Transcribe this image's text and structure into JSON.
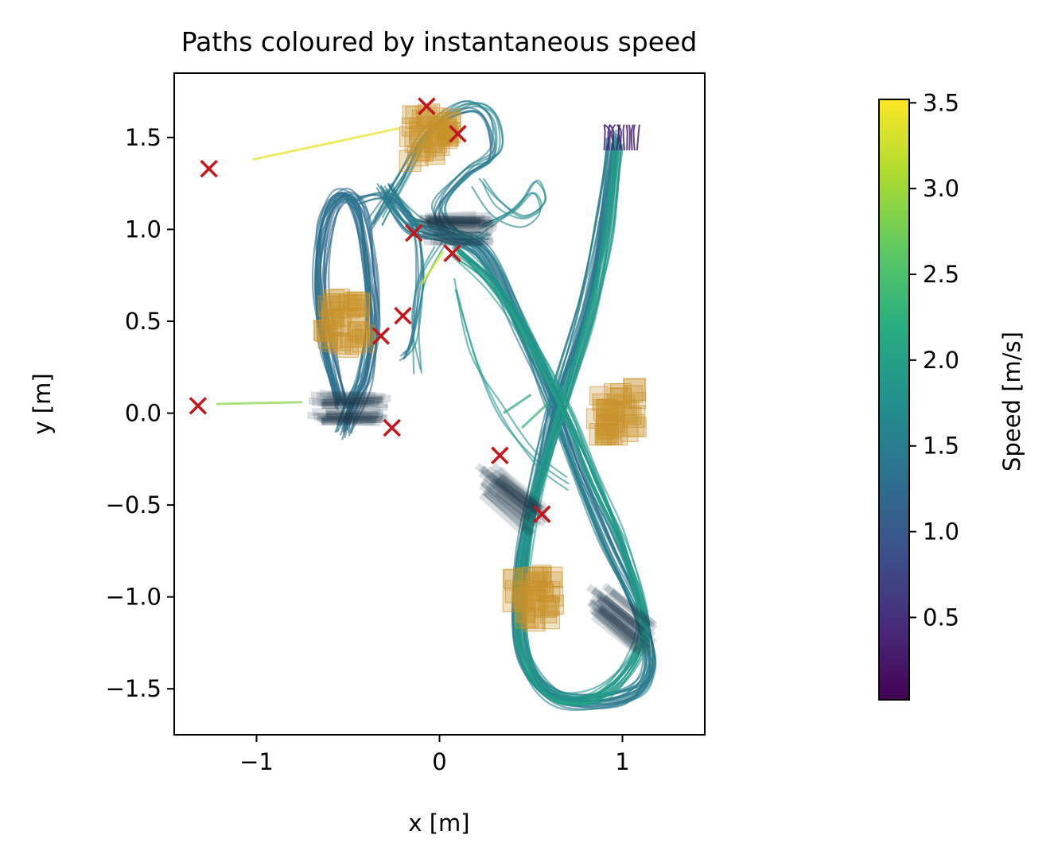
{
  "chart_data": {
    "type": "line",
    "title": "Paths coloured by instantaneous speed",
    "xlabel": "x [m]",
    "ylabel": "y [m]",
    "xlim": [
      -1.45,
      1.45
    ],
    "ylim": [
      -1.75,
      1.85
    ],
    "xticks": [
      -1,
      0,
      1
    ],
    "xtick_labels": [
      "−1",
      "0",
      "1"
    ],
    "yticks": [
      -1.5,
      -1.0,
      -0.5,
      0.0,
      0.5,
      1.0,
      1.5
    ],
    "ytick_labels": [
      "−1.5",
      "−1.0",
      "−0.5",
      "0.0",
      "0.5",
      "1.0",
      "1.5"
    ],
    "grid": false,
    "colorbar": {
      "label": "Speed [m/s]",
      "colormap": "viridis",
      "range": [
        0.02,
        3.52
      ],
      "ticks": [
        0.5,
        1.0,
        1.5,
        2.0,
        2.5,
        3.0,
        3.5
      ],
      "tick_labels": [
        "0.5",
        "1.0",
        "1.5",
        "2.0",
        "2.5",
        "3.0",
        "3.5"
      ]
    },
    "colors": {
      "gate_box": "#c8922b",
      "gate_line": "#1f3a4a",
      "cross_marker": "#c4161c"
    },
    "path_bundles": [
      {
        "count": 22,
        "speed": 1.3,
        "points": [
          [
            -0.53,
            0.05
          ],
          [
            -0.61,
            0.35
          ],
          [
            -0.65,
            0.7
          ],
          [
            -0.62,
            1.03
          ],
          [
            -0.53,
            1.18
          ],
          [
            -0.43,
            1.1
          ],
          [
            -0.38,
            0.8
          ],
          [
            -0.36,
            0.5
          ],
          [
            -0.4,
            0.2
          ],
          [
            -0.47,
            0.05
          ],
          [
            -0.52,
            -0.1
          ]
        ]
      },
      {
        "count": 22,
        "speed": 1.45,
        "points": [
          [
            -0.3,
            1.22
          ],
          [
            -0.15,
            1.02
          ],
          [
            0.05,
            0.96
          ],
          [
            0.25,
            0.85
          ],
          [
            0.45,
            0.45
          ],
          [
            0.6,
            0.1
          ],
          [
            0.75,
            -0.3
          ],
          [
            0.92,
            -0.7
          ],
          [
            1.1,
            -1.1
          ],
          [
            1.15,
            -1.4
          ],
          [
            1.0,
            -1.55
          ],
          [
            0.65,
            -1.55
          ],
          [
            0.45,
            -1.3
          ],
          [
            0.45,
            -0.8
          ],
          [
            0.55,
            -0.3
          ],
          [
            0.65,
            0.1
          ],
          [
            0.8,
            0.6
          ],
          [
            0.9,
            1.1
          ],
          [
            0.95,
            1.5
          ]
        ]
      },
      {
        "count": 18,
        "speed": 1.9,
        "points": [
          [
            0.1,
            0.88
          ],
          [
            0.3,
            0.7
          ],
          [
            0.5,
            0.4
          ],
          [
            0.7,
            0.0
          ],
          [
            0.85,
            -0.35
          ],
          [
            1.02,
            -0.75
          ],
          [
            1.12,
            -1.2
          ],
          [
            0.9,
            -1.52
          ],
          [
            0.6,
            -1.52
          ],
          [
            0.45,
            -1.2
          ],
          [
            0.5,
            -0.6
          ],
          [
            0.65,
            -0.05
          ],
          [
            0.82,
            0.5
          ],
          [
            0.93,
            1.0
          ],
          [
            0.98,
            1.48
          ]
        ]
      },
      {
        "count": 10,
        "speed": 1.5,
        "points": [
          [
            -0.35,
            1.02
          ],
          [
            -0.2,
            1.28
          ],
          [
            -0.05,
            1.52
          ],
          [
            0.15,
            1.66
          ],
          [
            0.28,
            1.6
          ],
          [
            0.3,
            1.4
          ],
          [
            0.15,
            1.3
          ],
          [
            0.0,
            1.1
          ],
          [
            0.1,
            0.95
          ],
          [
            0.25,
            0.95
          ]
        ]
      },
      {
        "count": 4,
        "speed": 1.7,
        "points": [
          [
            0.2,
            1.0
          ],
          [
            0.38,
            1.1
          ],
          [
            0.5,
            1.22
          ],
          [
            0.55,
            1.12
          ],
          [
            0.45,
            1.05
          ],
          [
            0.3,
            1.12
          ],
          [
            0.2,
            1.25
          ]
        ]
      },
      {
        "count": 6,
        "speed": 1.4,
        "points": [
          [
            -0.48,
            1.15
          ],
          [
            -0.3,
            1.18
          ],
          [
            -0.15,
            1.05
          ],
          [
            -0.1,
            0.75
          ],
          [
            -0.15,
            0.4
          ],
          [
            -0.2,
            0.3
          ]
        ]
      },
      {
        "count": 3,
        "speed": 1.9,
        "points": [
          [
            0.1,
            0.7
          ],
          [
            0.2,
            0.3
          ],
          [
            0.35,
            0.0
          ],
          [
            0.55,
            -0.25
          ],
          [
            0.72,
            -0.38
          ]
        ]
      },
      {
        "count": 3,
        "speed": 1.75,
        "points": [
          [
            0.0,
            0.95
          ],
          [
            -0.12,
            0.75
          ],
          [
            -0.15,
            0.5
          ],
          [
            -0.12,
            0.25
          ]
        ]
      }
    ],
    "fast_segments": [
      {
        "speed": 3.4,
        "points": [
          [
            -1.02,
            1.38
          ],
          [
            -0.22,
            1.55
          ]
        ]
      },
      {
        "speed": 2.9,
        "points": [
          [
            -1.22,
            0.05
          ],
          [
            -0.75,
            0.06
          ]
        ]
      },
      {
        "speed": 3.3,
        "points": [
          [
            -0.1,
            0.7
          ],
          [
            0.02,
            0.88
          ]
        ]
      },
      {
        "speed": 2.3,
        "points": [
          [
            0.45,
            -0.08
          ],
          [
            0.6,
            0.06
          ]
        ]
      },
      {
        "speed": 2.1,
        "points": [
          [
            0.35,
            0.0
          ],
          [
            0.5,
            0.1
          ]
        ]
      }
    ],
    "slow_tufts": {
      "x_range": [
        0.9,
        1.08
      ],
      "y": 1.55,
      "speed": 0.3
    },
    "gate_box_clusters": [
      {
        "x": -0.05,
        "y": 1.5,
        "count": 40
      },
      {
        "x": -0.52,
        "y": 0.49,
        "count": 40
      },
      {
        "x": 0.97,
        "y": 0.0,
        "count": 40
      },
      {
        "x": 0.52,
        "y": -1.0,
        "count": 40
      }
    ],
    "gate_line_clusters": [
      {
        "x": 0.1,
        "y": 1.0,
        "angle": 0,
        "count": 30
      },
      {
        "x": -0.5,
        "y": 0.03,
        "angle": 0,
        "count": 30
      },
      {
        "x": 0.4,
        "y": -0.47,
        "angle": -40,
        "count": 30
      },
      {
        "x": 1.0,
        "y": -1.12,
        "angle": -40,
        "count": 30
      }
    ],
    "cross_markers": [
      [
        -0.07,
        1.67
      ],
      [
        0.1,
        1.52
      ],
      [
        -1.26,
        1.33
      ],
      [
        -0.14,
        0.98
      ],
      [
        0.07,
        0.87
      ],
      [
        -0.2,
        0.53
      ],
      [
        -0.32,
        0.42
      ],
      [
        -1.32,
        0.04
      ],
      [
        -0.26,
        -0.08
      ],
      [
        0.33,
        -0.23
      ],
      [
        0.56,
        -0.55
      ]
    ]
  }
}
